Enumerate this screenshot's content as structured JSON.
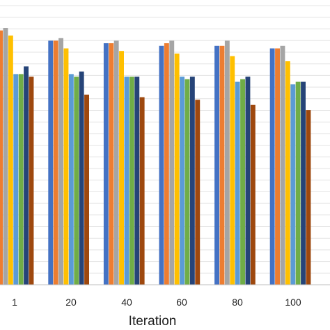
{
  "chart_data": {
    "type": "bar",
    "title": "",
    "xlabel": "Iteration",
    "ylabel": "",
    "categories": [
      "1",
      "20",
      "40",
      "60",
      "80",
      "100"
    ],
    "grid": true,
    "legend": "none",
    "ylim": [
      0,
      100
    ],
    "series": [
      {
        "color": "#4472C4",
        "values": [
          96,
          95,
          94,
          93,
          93,
          92
        ]
      },
      {
        "color": "#ED7D31",
        "values": [
          99,
          95,
          94,
          94,
          93,
          92
        ]
      },
      {
        "color": "#A5A5A5",
        "values": [
          100,
          96,
          95,
          95,
          95,
          93
        ]
      },
      {
        "color": "#FFC000",
        "values": [
          97,
          92,
          91,
          90,
          89,
          87
        ]
      },
      {
        "color": "#5B9BD5",
        "values": [
          82,
          82,
          81,
          81,
          79,
          78
        ]
      },
      {
        "color": "#70AD47",
        "values": [
          82,
          81,
          81,
          80,
          80,
          79
        ]
      },
      {
        "color": "#264478",
        "values": [
          85,
          83,
          81,
          81,
          81,
          79
        ]
      },
      {
        "color": "#9E480E",
        "values": [
          81,
          74,
          73,
          72,
          70,
          68
        ]
      }
    ]
  }
}
